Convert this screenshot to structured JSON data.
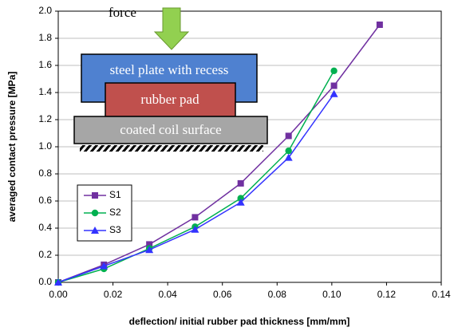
{
  "chart_data": {
    "type": "line",
    "xlabel": "deflection/ initial rubber pad thickness [mm/mm]",
    "ylabel": "averaged contact pressure [MPa]",
    "xlim": [
      0,
      0.14
    ],
    "xticks": [
      {
        "value": 0,
        "label": "0.00"
      },
      {
        "value": 0.02,
        "label": "0.02"
      },
      {
        "value": 0.04,
        "label": "0.04"
      },
      {
        "value": 0.06,
        "label": "0.06"
      },
      {
        "value": 0.08,
        "label": "0.08"
      },
      {
        "value": 0.1,
        "label": "0.10"
      },
      {
        "value": 0.12,
        "label": "0.12"
      },
      {
        "value": 0.14,
        "label": "0.14"
      }
    ],
    "ylim": [
      0,
      2
    ],
    "yticks": [
      {
        "value": 0,
        "label": "0.0"
      },
      {
        "value": 0.2,
        "label": "0.2"
      },
      {
        "value": 0.4,
        "label": "0.4"
      },
      {
        "value": 0.6,
        "label": "0.6"
      },
      {
        "value": 0.8,
        "label": "0.8"
      },
      {
        "value": 1,
        "label": "1.0"
      },
      {
        "value": 1.2,
        "label": "1.2"
      },
      {
        "value": 1.4,
        "label": "1.4"
      },
      {
        "value": 1.6,
        "label": "1.6"
      },
      {
        "value": 1.8,
        "label": "1.8"
      },
      {
        "value": 2,
        "label": "2.0"
      }
    ],
    "grid": true,
    "legend": "center left",
    "series": [
      {
        "name": "S1",
        "color": "#7030a0",
        "marker": "square",
        "x": [
          0,
          0.0167,
          0.0333,
          0.05,
          0.0667,
          0.0842,
          0.1008,
          0.1175
        ],
        "values": [
          0,
          0.13,
          0.28,
          0.48,
          0.73,
          1.08,
          1.45,
          1.9
        ]
      },
      {
        "name": "S2",
        "color": "#00b050",
        "marker": "circle",
        "x": [
          0,
          0.0167,
          0.0333,
          0.05,
          0.0667,
          0.0842,
          0.1008
        ],
        "values": [
          0,
          0.1,
          0.25,
          0.41,
          0.62,
          0.97,
          1.56
        ]
      },
      {
        "name": "S3",
        "color": "#3333ff",
        "marker": "triangle",
        "x": [
          0,
          0.0167,
          0.0333,
          0.05,
          0.0667,
          0.0842,
          0.1008
        ],
        "values": [
          0,
          0.12,
          0.24,
          0.39,
          0.59,
          0.92,
          1.39
        ]
      }
    ],
    "annotations": [
      "force",
      "steel plate with recess",
      "rubber pad",
      "coated coil surface"
    ]
  }
}
